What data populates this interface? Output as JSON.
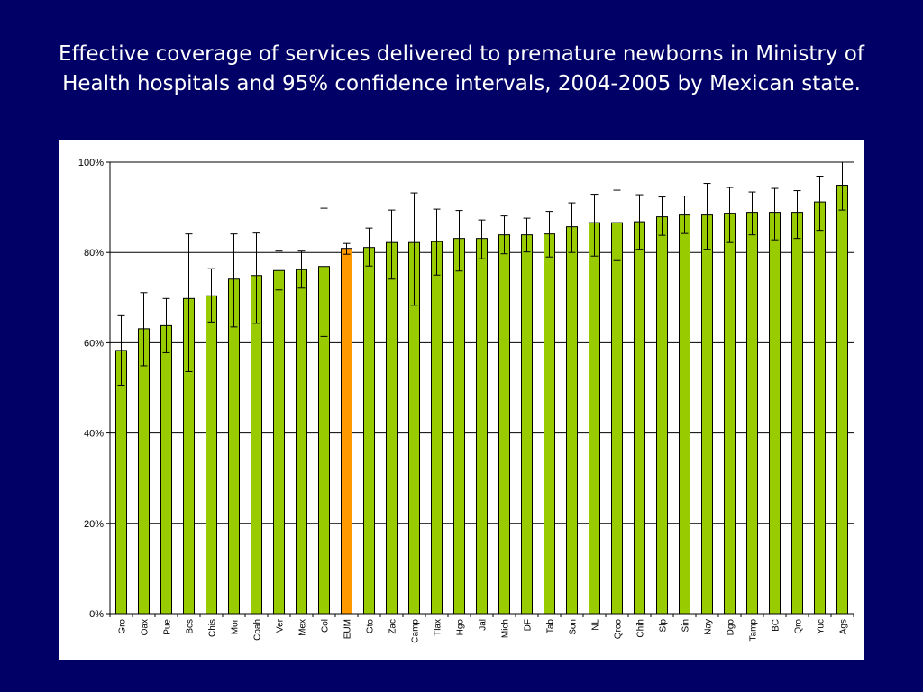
{
  "title": "Effective coverage of services delivered to premature newborns in Ministry of Health hospitals and 95% confidence intervals, 2004-2005 by Mexican state.",
  "colors": {
    "background": "#000066",
    "bar": "#99cc00",
    "highlight_bar": "#ff9900"
  },
  "chart_data": {
    "type": "bar",
    "title": "",
    "xlabel": "",
    "ylabel": "",
    "ylim": [
      0,
      100
    ],
    "y_ticks": [
      "0%",
      "20%",
      "40%",
      "60%",
      "80%",
      "100%"
    ],
    "grid": true,
    "legend": "none",
    "highlight": "EUM",
    "categories": [
      "Gro",
      "Oax",
      "Pue",
      "Bcs",
      "Chis",
      "Mor",
      "Coah",
      "Ver",
      "Mex",
      "Col",
      "EUM",
      "Gto",
      "Zac",
      "Camp",
      "Tlax",
      "Hgo",
      "Jal",
      "Mich",
      "DF",
      "Tab",
      "Son",
      "NL",
      "Qroo",
      "Chih",
      "Slp",
      "Sin",
      "Nay",
      "Dgo",
      "Tamp",
      "BC",
      "Qro",
      "Yuc",
      "Ags"
    ],
    "values": [
      58.3,
      63.1,
      63.8,
      69.8,
      70.4,
      74.1,
      74.9,
      76.0,
      76.2,
      76.9,
      80.9,
      81.1,
      82.2,
      82.2,
      82.4,
      83.1,
      83.1,
      83.9,
      83.9,
      84.1,
      85.7,
      86.6,
      86.6,
      86.8,
      87.9,
      88.3,
      88.3,
      88.7,
      88.9,
      88.9,
      88.9,
      91.2,
      94.9
    ],
    "ci_lower": [
      50.6,
      54.9,
      57.8,
      53.6,
      64.6,
      63.5,
      64.3,
      71.7,
      72.1,
      61.4,
      79.6,
      77.0,
      74.1,
      68.3,
      75.0,
      75.9,
      78.6,
      79.7,
      80.1,
      79.0,
      80.0,
      79.2,
      78.2,
      80.7,
      83.8,
      84.2,
      80.7,
      82.2,
      83.9,
      82.8,
      83.1,
      84.9,
      89.4
    ],
    "ci_upper": [
      66.0,
      71.1,
      69.8,
      84.1,
      76.4,
      84.1,
      84.3,
      80.3,
      80.3,
      89.8,
      82.0,
      85.4,
      89.4,
      93.2,
      89.6,
      89.3,
      87.2,
      88.1,
      87.6,
      89.1,
      91.0,
      92.9,
      93.8,
      92.8,
      92.3,
      92.5,
      95.3,
      94.4,
      93.4,
      94.2,
      93.7,
      96.9,
      100.0
    ]
  }
}
